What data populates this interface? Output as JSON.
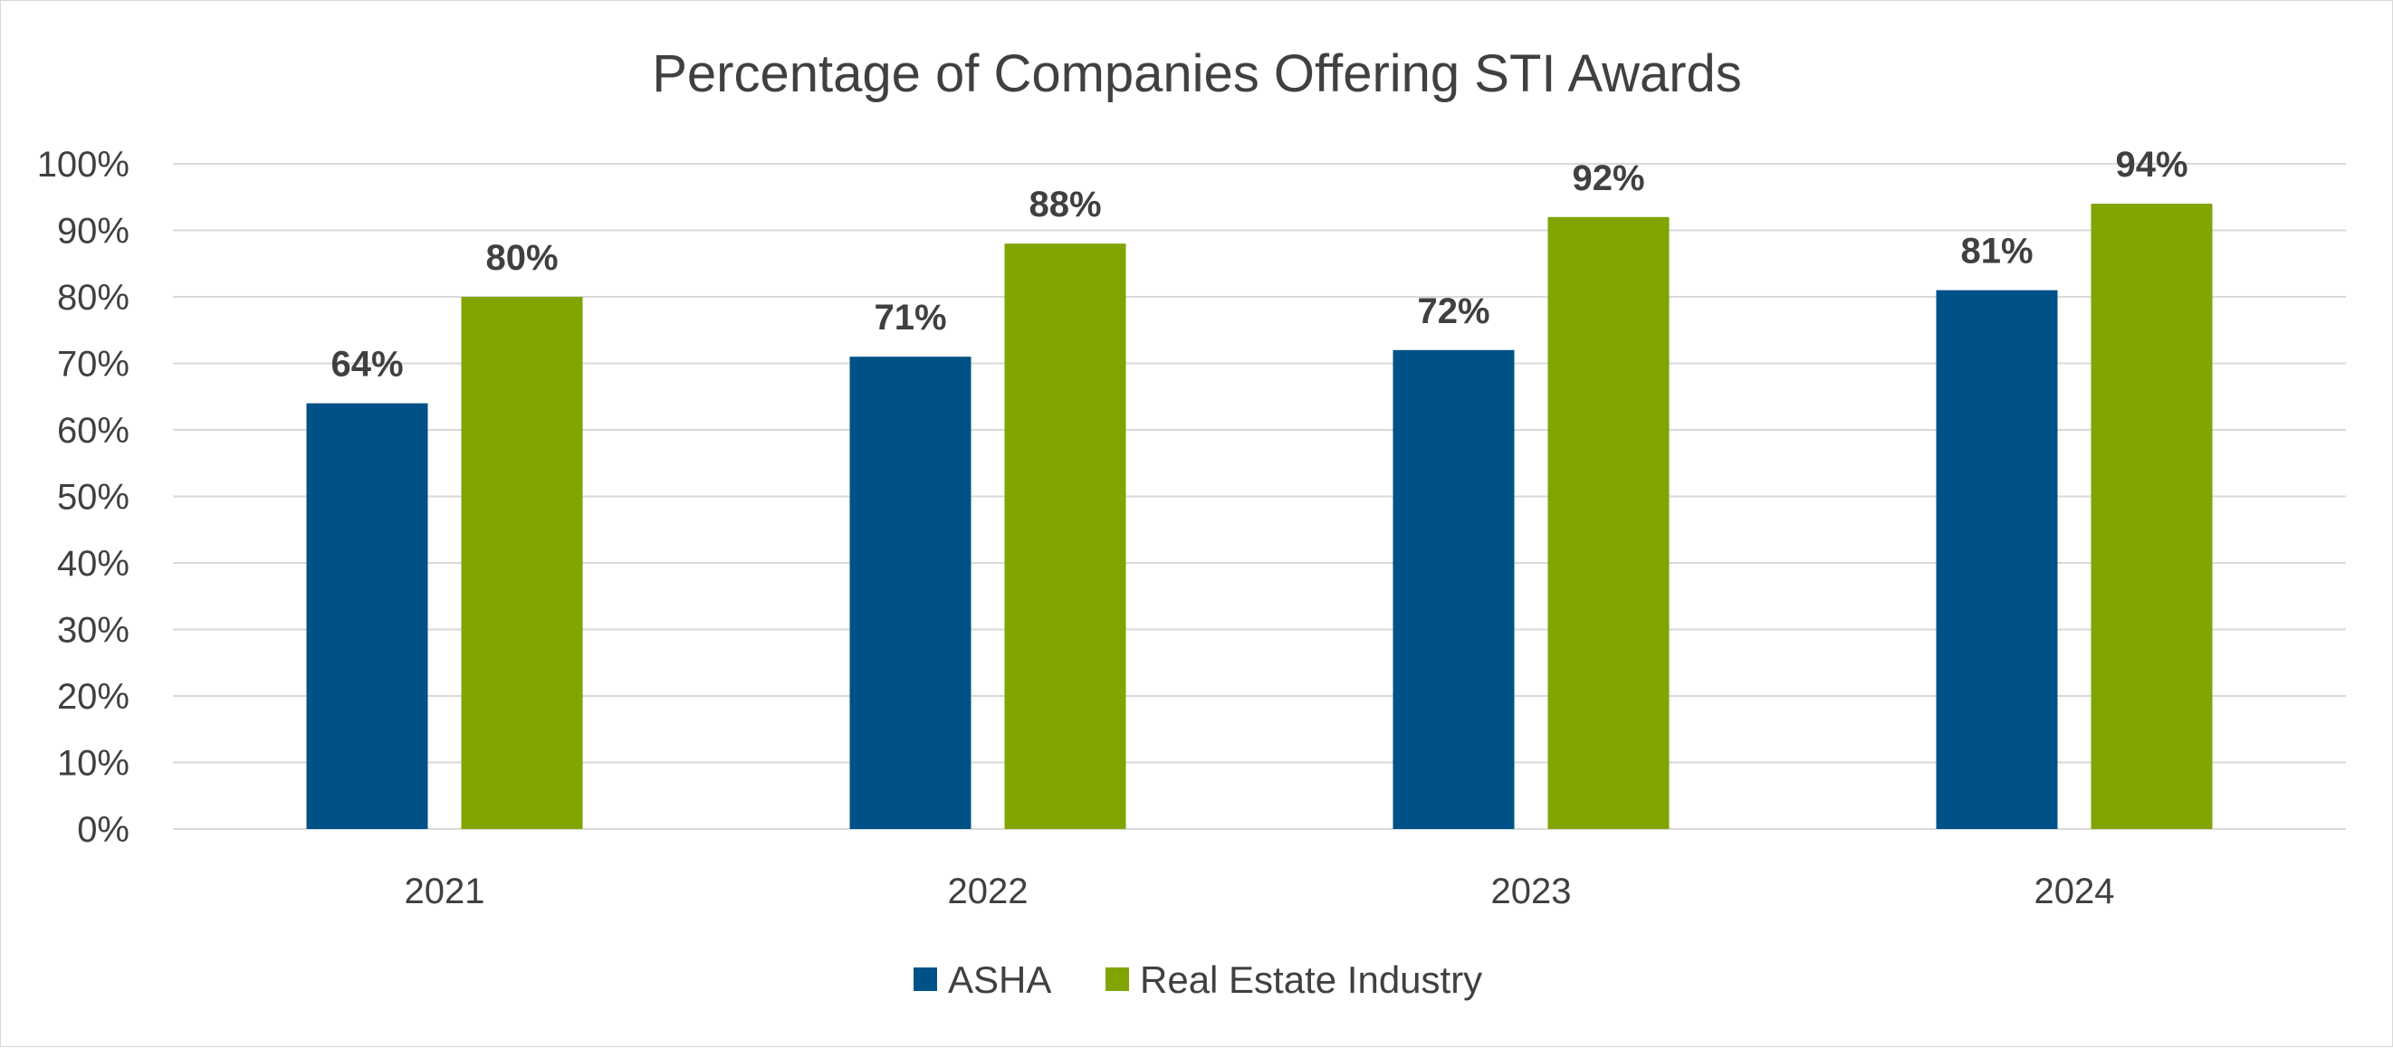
{
  "chart_data": {
    "type": "bar",
    "title": "Percentage of Companies Offering STI Awards",
    "xlabel": "",
    "ylabel": "",
    "categories": [
      "2021",
      "2022",
      "2023",
      "2024"
    ],
    "series": [
      {
        "name": "ASHA",
        "values": [
          64,
          71,
          72,
          81
        ],
        "labels": [
          "64%",
          "71%",
          "72%",
          "81%"
        ],
        "color": "#005187"
      },
      {
        "name": "Real Estate Industry",
        "values": [
          80,
          88,
          92,
          94
        ],
        "labels": [
          "80%",
          "88%",
          "92%",
          "94%"
        ],
        "color": "#80A500"
      }
    ],
    "ylim": [
      0,
      100
    ],
    "yticks": [
      0,
      10,
      20,
      30,
      40,
      50,
      60,
      70,
      80,
      90,
      100
    ],
    "ytick_labels": [
      "0%",
      "10%",
      "20%",
      "30%",
      "40%",
      "50%",
      "60%",
      "70%",
      "80%",
      "90%",
      "100%"
    ],
    "grid": true,
    "gridline_color": "#d9d9d9",
    "legend_position": "bottom"
  }
}
